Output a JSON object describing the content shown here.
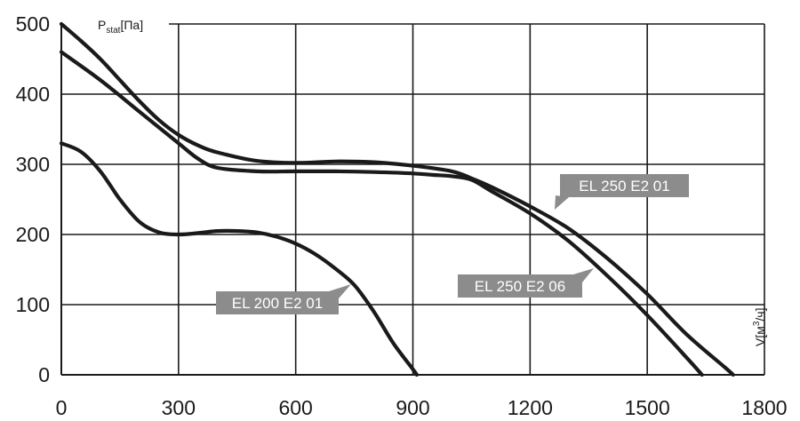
{
  "chart_data": {
    "type": "line",
    "title": "",
    "ylabel": {
      "main": "P",
      "sub": "stat",
      "unit": "[Па]"
    },
    "xlabel": {
      "main": "V[м",
      "sup": "3",
      "tail": "/ч]"
    },
    "xlim": [
      0,
      1800
    ],
    "ylim": [
      0,
      500
    ],
    "x_ticks": [
      0,
      300,
      600,
      900,
      1200,
      1500,
      1800
    ],
    "y_ticks": [
      0,
      100,
      200,
      300,
      400,
      500
    ],
    "grid": true,
    "colors": {
      "line": "#1a1a1a",
      "grid": "#1a1a1a",
      "callout": "#8c8c8c"
    },
    "series": [
      {
        "name": "EL 200 E2 01",
        "points": [
          [
            0,
            330
          ],
          [
            50,
            318
          ],
          [
            100,
            290
          ],
          [
            150,
            250
          ],
          [
            200,
            218
          ],
          [
            250,
            203
          ],
          [
            300,
            200
          ],
          [
            350,
            202
          ],
          [
            400,
            205
          ],
          [
            450,
            205
          ],
          [
            500,
            203
          ],
          [
            550,
            197
          ],
          [
            600,
            187
          ],
          [
            650,
            172
          ],
          [
            700,
            152
          ],
          [
            750,
            128
          ],
          [
            800,
            90
          ],
          [
            850,
            45
          ],
          [
            900,
            8
          ],
          [
            910,
            0
          ]
        ]
      },
      {
        "name": "EL 250 E2 06",
        "points": [
          [
            0,
            460
          ],
          [
            100,
            420
          ],
          [
            200,
            375
          ],
          [
            300,
            330
          ],
          [
            350,
            308
          ],
          [
            400,
            295
          ],
          [
            500,
            290
          ],
          [
            600,
            290
          ],
          [
            700,
            290
          ],
          [
            800,
            289
          ],
          [
            900,
            287
          ],
          [
            950,
            285
          ],
          [
            1000,
            283
          ],
          [
            1050,
            278
          ],
          [
            1100,
            262
          ],
          [
            1200,
            230
          ],
          [
            1300,
            190
          ],
          [
            1400,
            140
          ],
          [
            1500,
            85
          ],
          [
            1600,
            25
          ],
          [
            1640,
            0
          ]
        ]
      },
      {
        "name": "EL 250 E2 01",
        "points": [
          [
            0,
            500
          ],
          [
            50,
            476
          ],
          [
            100,
            450
          ],
          [
            150,
            420
          ],
          [
            200,
            390
          ],
          [
            250,
            363
          ],
          [
            300,
            342
          ],
          [
            350,
            327
          ],
          [
            400,
            317
          ],
          [
            500,
            305
          ],
          [
            600,
            302
          ],
          [
            700,
            304
          ],
          [
            800,
            303
          ],
          [
            900,
            298
          ],
          [
            1000,
            290
          ],
          [
            1050,
            280
          ],
          [
            1100,
            268
          ],
          [
            1200,
            240
          ],
          [
            1300,
            208
          ],
          [
            1400,
            165
          ],
          [
            1500,
            115
          ],
          [
            1600,
            58
          ],
          [
            1700,
            10
          ],
          [
            1720,
            0
          ]
        ]
      }
    ],
    "annotations": [
      {
        "text": "EL 200 E2 01",
        "series": "EL 200 E2 01"
      },
      {
        "text": "EL 250 E2 06",
        "series": "EL 250 E2 06"
      },
      {
        "text": "EL 250 E2 01",
        "series": "EL 250 E2 01"
      }
    ]
  }
}
